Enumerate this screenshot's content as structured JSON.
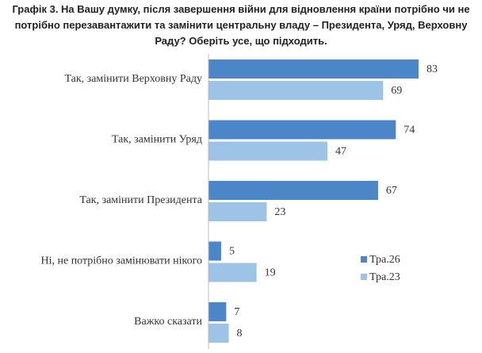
{
  "chart_data": {
    "type": "bar",
    "orientation": "horizontal",
    "title": "Графік 3. На Вашу думку, після завершення війни для відновлення країни потрібно чи не потрібно перезавантажити та замінити центральну владу – Президента, Уряд, Верховну Раду? Оберіть усе, що підходить.",
    "categories": [
      "Так, замінити Верховну Раду",
      "Так, замінити Уряд",
      "Так, замінити Президента",
      "Ні, не потрібно замінювати нікого",
      "Важко сказати"
    ],
    "series": [
      {
        "name": "Тра.26",
        "color": "#4a86c8",
        "values": [
          83,
          74,
          67,
          5,
          7
        ]
      },
      {
        "name": "Тра.23",
        "color": "#9dc3e6",
        "values": [
          69,
          47,
          23,
          19,
          8
        ]
      }
    ],
    "legend": "right"
  }
}
